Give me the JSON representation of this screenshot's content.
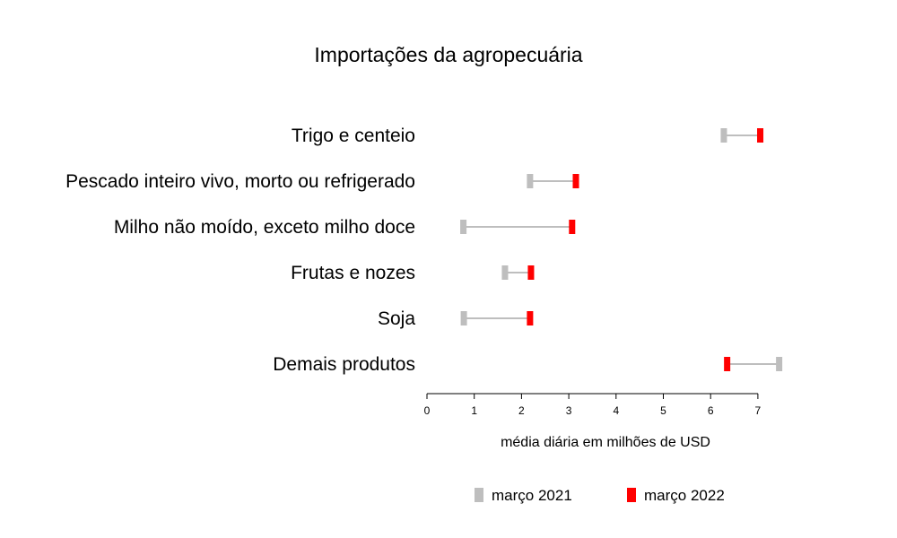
{
  "chart_data": {
    "type": "dumbbell",
    "title": "Importações da agropecuária",
    "xlabel": "média diária em milhões de USD",
    "ylabel": "",
    "xlim": [
      0,
      7.5
    ],
    "x_ticks": [
      0,
      1,
      2,
      3,
      4,
      5,
      6,
      7
    ],
    "grid": false,
    "legend_position": "bottom",
    "categories": [
      "Trigo e centeio",
      "Pescado inteiro vivo, morto ou refrigerado",
      "Milho não moído, exceto milho doce",
      "Frutas e nozes",
      "Soja",
      "Demais produtos"
    ],
    "series": [
      {
        "name": "março 2021",
        "color": "#bebebe",
        "values": [
          6.28,
          2.18,
          0.77,
          1.65,
          0.78,
          7.45
        ]
      },
      {
        "name": "março 2022",
        "color": "#ff0000",
        "values": [
          7.05,
          3.15,
          3.07,
          2.2,
          2.18,
          6.35
        ]
      }
    ]
  }
}
